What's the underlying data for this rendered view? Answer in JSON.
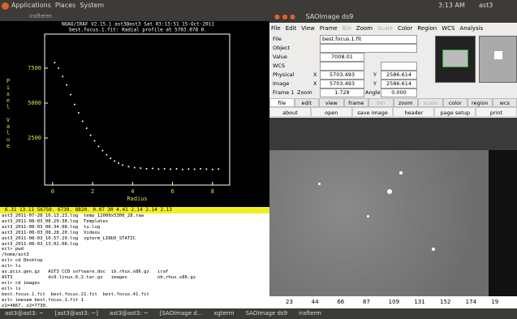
{
  "top_panel": {
    "menus": [
      "Applications",
      "Places",
      "System"
    ],
    "clock": "3:13 AM",
    "user": "ast3"
  },
  "irafterm": {
    "title": "irafterm",
    "plot": {
      "type": "scatter",
      "title": [
        "NOAO/IRAF V2.15.1 ast3@ast3 Sat 03:13:51 15-Oct-2011",
        "best.focus.1.fit: Radial profile at 5703.078 0."
      ],
      "xlabel": "Radius",
      "ylabel": "Pixel Value",
      "x": [
        0.1,
        0.3,
        0.5,
        0.7,
        0.9,
        1.1,
        1.3,
        1.5,
        1.7,
        1.9,
        2.1,
        2.3,
        2.5,
        2.7,
        2.9,
        3.1,
        3.3,
        3.5,
        3.8,
        4.1,
        4.4,
        4.7,
        5.0,
        5.3,
        5.6,
        5.9,
        6.2,
        6.5,
        6.8,
        7.1,
        7.4,
        7.7,
        8.0,
        8.3
      ],
      "y": [
        7900,
        7500,
        6900,
        6300,
        5600,
        4900,
        4300,
        3700,
        3200,
        2700,
        2300,
        1900,
        1600,
        1300,
        1050,
        850,
        700,
        560,
        450,
        380,
        340,
        300,
        320,
        280,
        300,
        260,
        290,
        250,
        280,
        260,
        300,
        270,
        250,
        280
      ],
      "color": "#ffffff",
      "xlim": [
        -0.4,
        8.86
      ],
      "ylim": [
        -870,
        9940
      ],
      "xticks": [
        0,
        2,
        4,
        6,
        8
      ],
      "yticks": [
        2500,
        5000,
        7500
      ]
    },
    "status": "6.31   13.11   56759.   6739.   8820.   0.07   30   4.41      2.14      2.14     2.13"
  },
  "xterm": {
    "lines": [
      "ast3_2011-07-28_16.13.23.log  temp_12000x5300_28.raw",
      "ast3_2011-08-03_08.29.38.log  Templates",
      "ast3_2011-08-03_08.34.08.log  tu.log",
      "ast3_2011-08-03_08.28.20.log  Videos",
      "ast3_2011-08-03_10.57.29.log  xgterm_LINUX_STATIC",
      "ast3_2011-08-03_13.02.08.log",
      "ecl> pwd",
      "/home/ast3",
      "ecl> cd Desktop",
      "ecl> ls",
      "as.pcix.gen.gz   AST3 CCD software.doc  ib.rhux.x86.gz   iraf",
      "AST3             ds9.linux.6.2.tar.gz   images           nb.rhux.x86.gz",
      "ecl> cd images",
      "ecl> ls",
      "best.focus.1.fit  best.focus.21.fit  best.focus.41.fit",
      "ecl> imexam best.focus.1.fit 1",
      "z1=4867. z2=7730."
    ]
  },
  "ds9": {
    "title": "SAOImage ds9",
    "menus": [
      "File",
      "Edit",
      "View",
      "Frame",
      "Bin",
      "Zoom",
      "Scale",
      "Color",
      "Region",
      "WCS",
      "Analysis"
    ],
    "info": {
      "file_label": "File",
      "file": "best.focus.1.fit",
      "object_label": "Object",
      "value_label": "Value",
      "value": "7008.01",
      "wcs_label": "WCS",
      "physical_label": "Physical",
      "physical_x_label": "X",
      "physical_x": "5703.493",
      "physical_y_label": "Y",
      "physical_y": "2586.614",
      "image_label": "Image",
      "image_x_label": "X",
      "image_x": "5703.493",
      "image_y_label": "Y",
      "image_y": "2586.614",
      "frame_label": "Frame 1",
      "zoom_label": "Zoom",
      "zoom": "1.728",
      "angle_label": "Angle",
      "angle": "0.000"
    },
    "buttons_top": [
      "file",
      "edit",
      "view",
      "frame",
      "bin",
      "zoom",
      "scale",
      "color",
      "region",
      "wcs"
    ],
    "buttons_bottom": [
      "about",
      "open",
      "save image",
      "header",
      "page setup",
      "print"
    ],
    "ruler": [
      "23",
      "44",
      "66",
      "87",
      "109",
      "131",
      "152",
      "174",
      "19"
    ]
  },
  "taskbar": {
    "items": [
      "ast3@ast3: ~",
      "[ast3@ast3: ~]",
      "ast3@ast3: ~",
      "[SAOImage d...",
      "xgterm",
      "SAOImage ds9",
      "irafterm"
    ]
  }
}
